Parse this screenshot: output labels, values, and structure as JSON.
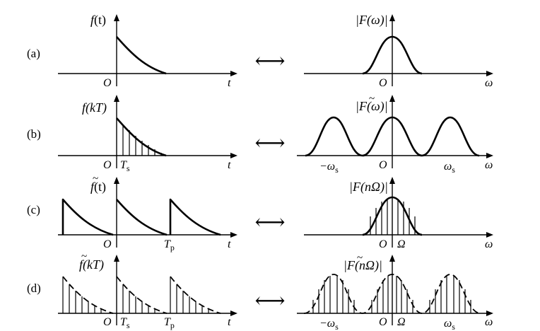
{
  "rows": [
    {
      "label": "(a)",
      "left": {
        "fn": "f",
        "arg": "(t)",
        "tilde": false,
        "origin": "O",
        "xaxis": "t",
        "ts": "",
        "ts_sub": "",
        "tp": "",
        "tp_sub": ""
      },
      "right": {
        "fn": "|F",
        "arg": "(ω)|",
        "tilde": false,
        "origin": "O",
        "xaxis": "ω",
        "neg": "",
        "neg_sub": "",
        "pos": "",
        "pos_sub": "",
        "omega": ""
      }
    },
    {
      "label": "(b)",
      "left": {
        "fn": "f",
        "arg": "(kT)",
        "tilde": false,
        "origin": "O",
        "xaxis": "t",
        "ts": "T",
        "ts_sub": "s",
        "tp": "",
        "tp_sub": ""
      },
      "right": {
        "fn": "|F",
        "arg": "(ω)|",
        "tilde": true,
        "origin": "O",
        "xaxis": "ω",
        "neg": "−ω",
        "neg_sub": "s",
        "pos": "ω",
        "pos_sub": "s",
        "omega": ""
      }
    },
    {
      "label": "(c)",
      "left": {
        "fn": "f",
        "arg": "(t)",
        "tilde": true,
        "origin": "O",
        "xaxis": "t",
        "ts": "",
        "ts_sub": "",
        "tp": "T",
        "tp_sub": "p"
      },
      "right": {
        "fn": "|F",
        "arg": "(nΩ)|",
        "tilde": false,
        "origin": "O",
        "xaxis": "ω",
        "neg": "",
        "neg_sub": "",
        "pos": "",
        "pos_sub": "",
        "omega": "Ω"
      }
    },
    {
      "label": "(d)",
      "left": {
        "fn": "f",
        "arg": "(kT)",
        "tilde": true,
        "origin": "O",
        "xaxis": "t",
        "ts": "T",
        "ts_sub": "s",
        "tp": "T",
        "tp_sub": "p"
      },
      "right": {
        "fn": "|F",
        "arg": "(nΩ)|",
        "tilde": true,
        "origin": "O",
        "xaxis": "ω",
        "neg": "−ω",
        "neg_sub": "s",
        "pos": "ω",
        "pos_sub": "s",
        "omega": "Ω"
      }
    }
  ],
  "arrow_symbol": "⟷"
}
